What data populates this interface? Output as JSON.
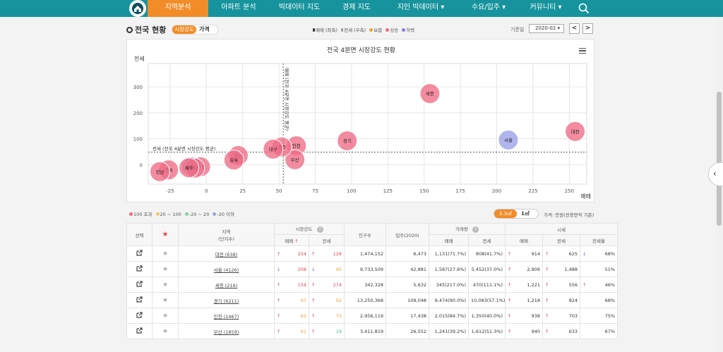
{
  "nav": {
    "items": [
      "지역분석",
      "아파트 분석",
      "빅데이터 지도",
      "경제 지도",
      "지인 빅데이터 ▾",
      "수요/입주 ▾",
      "커뮤니티 ▾"
    ]
  },
  "header": {
    "title": "전국 현황",
    "tab_active": "시장강도",
    "tab_other": "가격",
    "legend": [
      "매매 (좌측)",
      "전세 (우측)",
      "보합",
      "상승",
      "하락"
    ],
    "date_label": "기준일",
    "date_value": "2020-02 ▾",
    "prev": "<",
    "next": ">"
  },
  "chart_data": {
    "type": "scatter",
    "title": "전국 4분면 시장강도 현황",
    "ylabel": "전세",
    "xlabel": "매매",
    "xlim": [
      -40,
      262
    ],
    "ylim": [
      -75,
      390
    ],
    "x_ticks": [
      -25,
      0,
      25,
      50,
      75,
      100,
      125,
      150,
      175,
      200,
      225,
      250
    ],
    "y_ticks": [
      0,
      100,
      200,
      300
    ],
    "ref_x": 53,
    "ref_y": 48,
    "ref_x_label": "매매 (전국 4분면 시장강도 평균)",
    "ref_y_label": "전세 (전국 4분면 시장강도 평균)",
    "points": [
      {
        "name": "대전",
        "x": 254,
        "y": 128,
        "color": "#ef6b85"
      },
      {
        "name": "서울",
        "x": 208,
        "y": 95,
        "color": "#9aa0e8"
      },
      {
        "name": "세종",
        "x": 154,
        "y": 274,
        "color": "#ef6b85"
      },
      {
        "name": "경기",
        "x": 97,
        "y": 92,
        "color": "#ef6b85"
      },
      {
        "name": "인천",
        "x": 62,
        "y": 73,
        "color": "#ef6b85"
      },
      {
        "name": "부산",
        "x": 61,
        "y": 19,
        "color": "#ef6b85"
      },
      {
        "name": "광주",
        "x": 52,
        "y": 68,
        "color": "#ef6b85"
      },
      {
        "name": "대구",
        "x": 46,
        "y": 60,
        "color": "#ef6b85"
      },
      {
        "name": "충남",
        "x": 22,
        "y": 35,
        "color": "#ef6b85"
      },
      {
        "name": "충북",
        "x": 19,
        "y": 18,
        "color": "#ef6b85"
      },
      {
        "name": "강원",
        "x": -4,
        "y": -8,
        "color": "#ef6b85"
      },
      {
        "name": "전북",
        "x": -10,
        "y": -8,
        "color": "#a08ad6"
      },
      {
        "name": "경남",
        "x": -8,
        "y": -13,
        "color": "#ef6b85"
      },
      {
        "name": "제주",
        "x": -12,
        "y": -12,
        "color": "#ef6b85"
      },
      {
        "name": "경북",
        "x": -26,
        "y": -20,
        "color": "#ef6b85"
      },
      {
        "name": "전남",
        "x": -32,
        "y": -27,
        "color": "#ef6b85"
      }
    ]
  },
  "legend_bottom": [
    "100 초과",
    "20 ~ 100",
    "-20 ~ 20",
    "-20 이하"
  ],
  "legend_bottom_colors": [
    "#ef6b85",
    "#f1c46a",
    "#7fd1a8",
    "#9aa0e8"
  ],
  "unit": {
    "a": "3.3㎡",
    "b": "1㎡",
    "note": "가격: 만원(전용면적 기준)"
  },
  "table": {
    "headers": {
      "select": "선택",
      "region": "지역",
      "region_sub": "(단지수)",
      "strength": "시장강도",
      "population": "인구수",
      "moving": "입주(2020)",
      "volume": "거래량",
      "price": "시세",
      "sale": "매매",
      "jeonse": "전세",
      "ratio": "전세율",
      "help": "?"
    },
    "rows": [
      {
        "region": "대전 (638)",
        "s_dir": "↑",
        "s_val": "254",
        "s_cls": "v-red",
        "j_dir": "↑",
        "j_val": "128",
        "j_cls": "v-red",
        "pop": "1,474,152",
        "move": "6,473",
        "vs": "1,131(71.7%)",
        "vj": "808(41.7%)",
        "p_dir": "↑",
        "p_sale": "914",
        "pj_dir": "↑",
        "p_jeonse": "625",
        "r_dir": "↓",
        "ratio": "68%"
      },
      {
        "region": "서울 (4126)",
        "s_dir": "↓",
        "s_val": "208",
        "s_cls": "v-red",
        "j_dir": "↓",
        "j_val": "95",
        "j_cls": "v-orange",
        "pop": "9,733,509",
        "move": "42,881",
        "vs": "1,587(27.6%)",
        "vj": "5,452(37.0%)",
        "p_dir": "↑",
        "p_sale": "2,906",
        "pj_dir": "↑",
        "p_jeonse": "1,488",
        "r_dir": "",
        "ratio": "51%"
      },
      {
        "region": "세종 (216)",
        "s_dir": "↑",
        "s_val": "154",
        "s_cls": "v-red",
        "j_dir": "↑",
        "j_val": "274",
        "j_cls": "v-red",
        "pop": "342,328",
        "move": "5,632",
        "vs": "345(217.0%)",
        "vj": "470(111.1%)",
        "p_dir": "↑",
        "p_sale": "1,221",
        "pj_dir": "↑",
        "p_jeonse": "556",
        "r_dir": "↑",
        "ratio": "46%"
      },
      {
        "region": "경기 (6211)",
        "s_dir": "↑",
        "s_val": "97",
        "s_cls": "v-orange",
        "j_dir": "↑",
        "j_val": "92",
        "j_cls": "v-orange",
        "pop": "13,250,368",
        "move": "109,048",
        "vs": "9,474(90.0%)",
        "vj": "10,083(57.1%)",
        "p_dir": "↑",
        "p_sale": "1,218",
        "pj_dir": "↑",
        "p_jeonse": "824",
        "r_dir": "",
        "ratio": "68%"
      },
      {
        "region": "인천 (1467)",
        "s_dir": "↑",
        "s_val": "62",
        "s_cls": "v-orange",
        "j_dir": "↑",
        "j_val": "73",
        "j_cls": "v-orange",
        "pop": "2,956,119",
        "move": "17,438",
        "vs": "2,015(84.7%)",
        "vj": "1,350(40.0%)",
        "p_dir": "↑",
        "p_sale": "938",
        "pj_dir": "↑",
        "p_jeonse": "703",
        "r_dir": "",
        "ratio": "75%"
      },
      {
        "region": "부산 (1859)",
        "s_dir": "↑",
        "s_val": "61",
        "s_cls": "v-orange",
        "j_dir": "↑",
        "j_val": "19",
        "j_cls": "v-green",
        "pop": "3,411,819",
        "move": "26,552",
        "vs": "1,241(39.2%)",
        "vj": "1,612(51.3%)",
        "p_dir": "↑",
        "p_sale": "940",
        "pj_dir": "↑",
        "p_jeonse": "633",
        "r_dir": "",
        "ratio": "67%"
      }
    ]
  }
}
